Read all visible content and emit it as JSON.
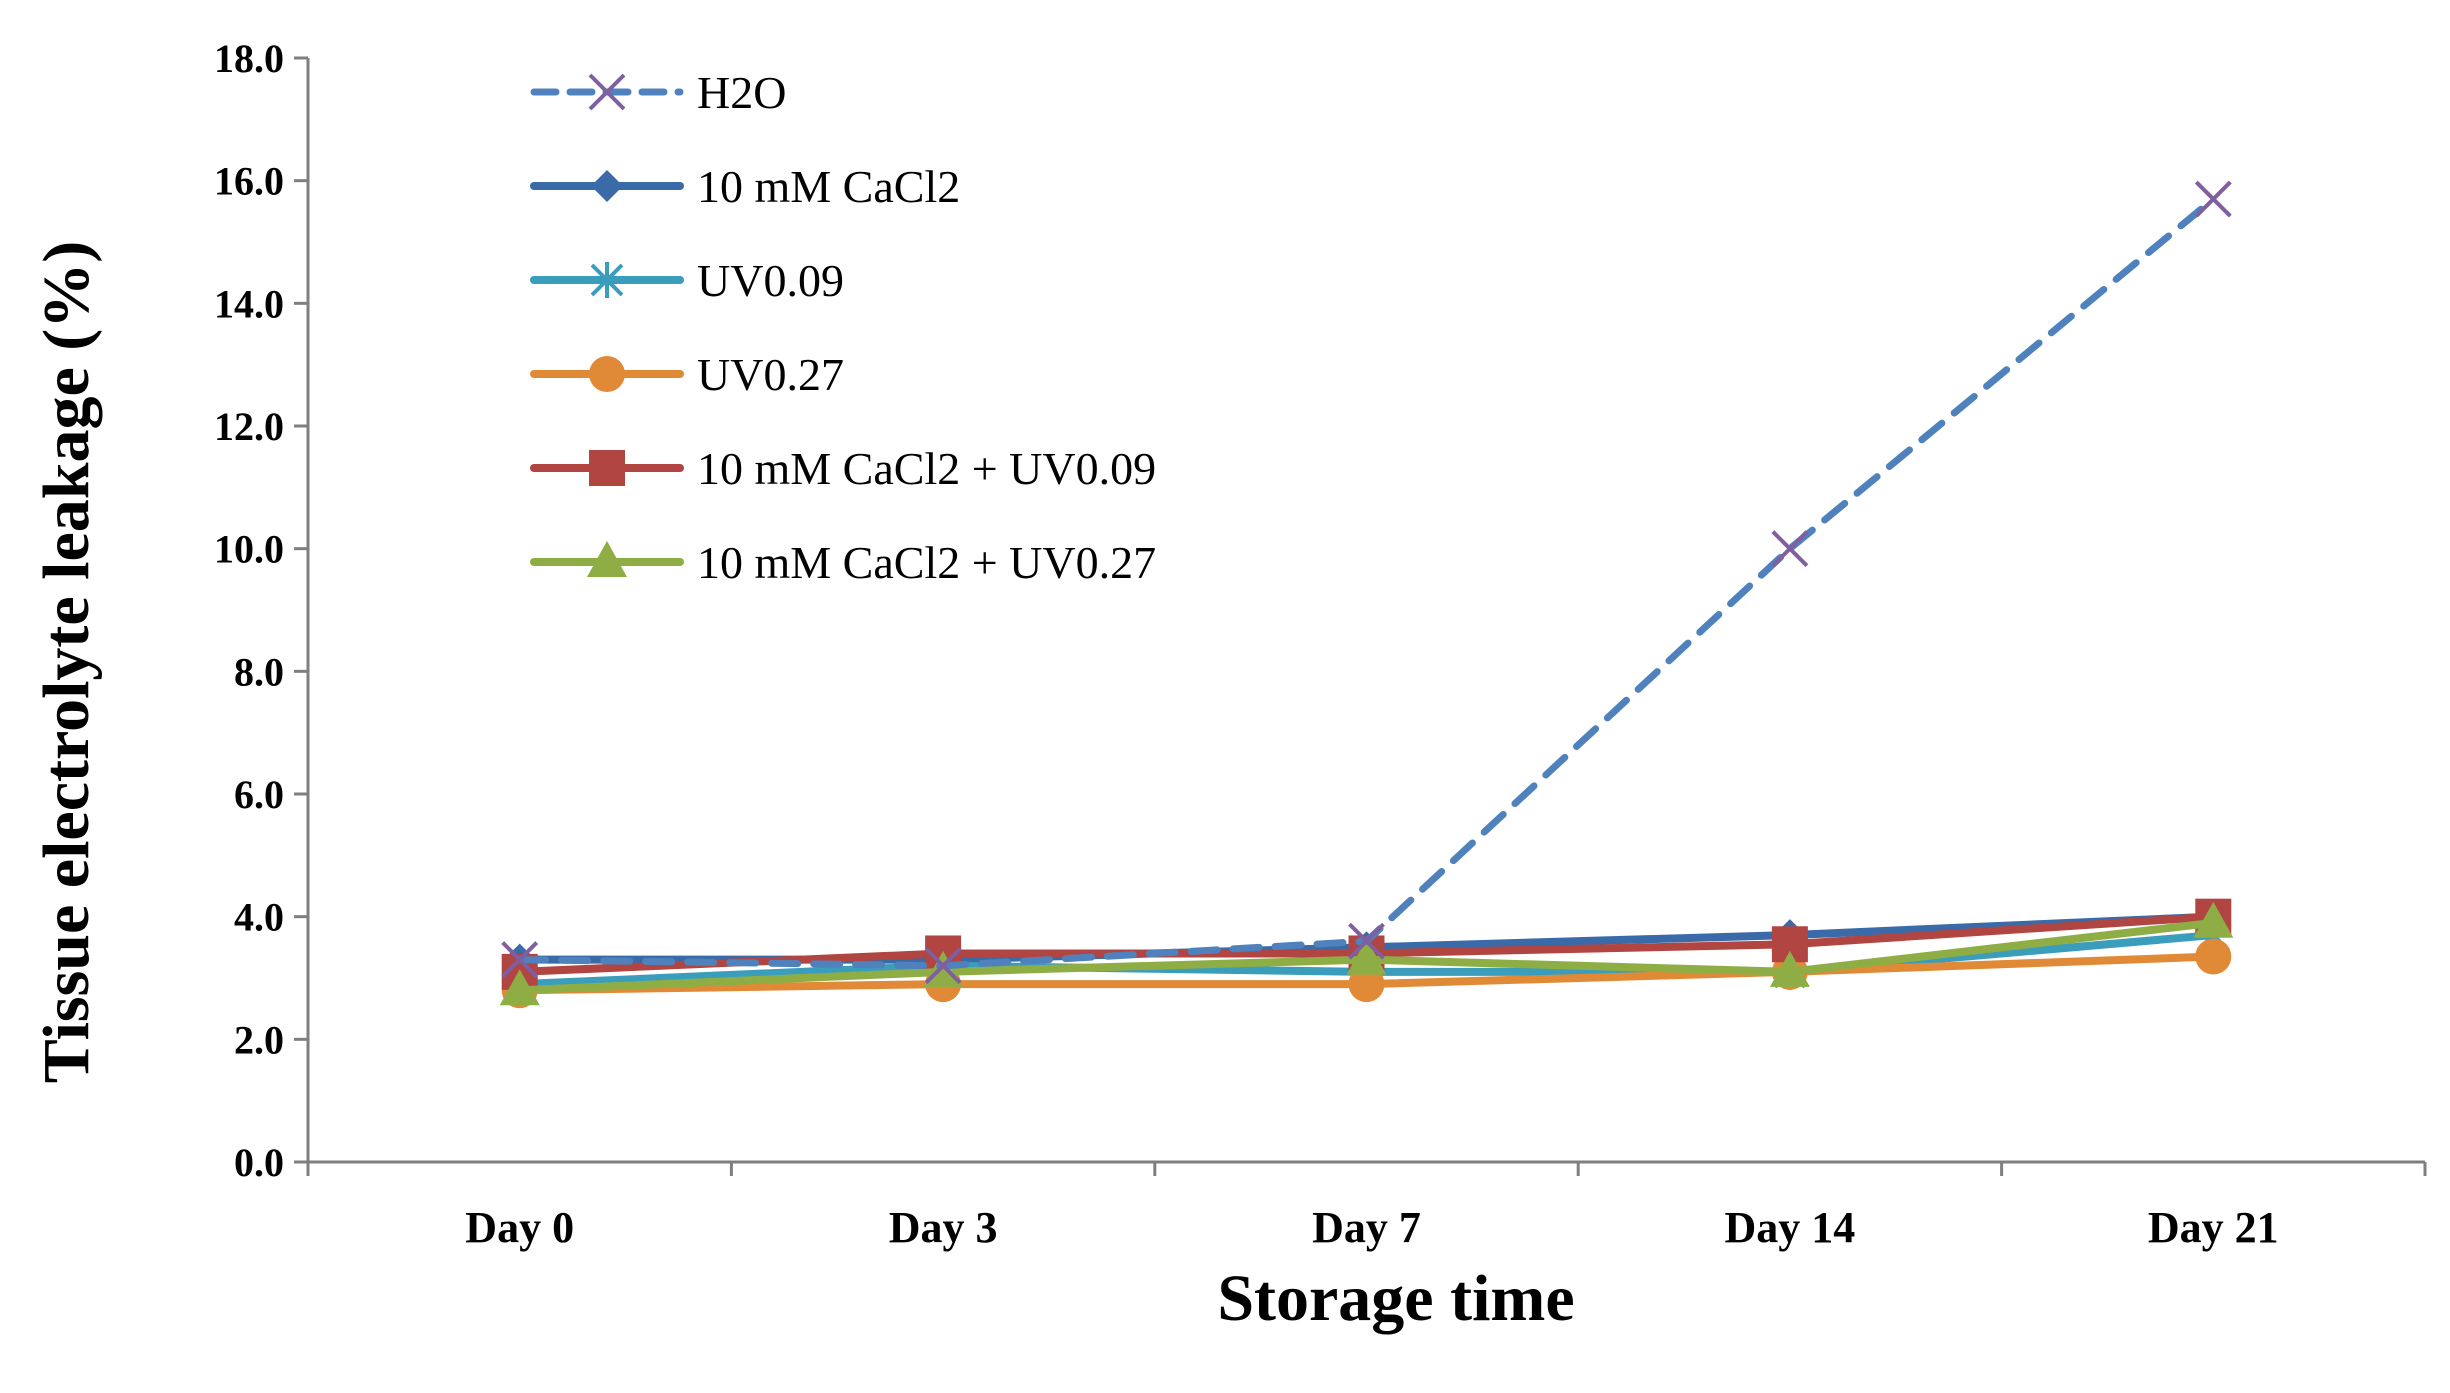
{
  "chart_data": {
    "type": "line",
    "title": "",
    "xlabel": "Storage time",
    "ylabel": "Tissue electrolyte leakage (%)",
    "ylim": [
      0,
      18
    ],
    "yticks": [
      "0.0",
      "2.0",
      "4.0",
      "6.0",
      "8.0",
      "10.0",
      "12.0",
      "14.0",
      "16.0",
      "18.0"
    ],
    "categories": [
      "Day 0",
      "Day 3",
      "Day 7",
      "Day 14",
      "Day 21"
    ],
    "grid": false,
    "legend_position": "top-left",
    "series": [
      {
        "name": "H2O",
        "values": [
          3.3,
          3.2,
          3.6,
          10.0,
          15.7
        ],
        "color": "#4f81bd",
        "marker_color": "#7f5fa0",
        "marker": "x",
        "dash": true
      },
      {
        "name": "10 mM CaCl2",
        "values": [
          3.3,
          3.3,
          3.5,
          3.7,
          4.0
        ],
        "color": "#3a6aa8",
        "marker": "diamond",
        "dash": false
      },
      {
        "name": "UV0.09",
        "values": [
          2.9,
          3.2,
          3.1,
          3.1,
          3.7
        ],
        "color": "#3a9dbb",
        "marker": "asterisk",
        "dash": false
      },
      {
        "name": "UV0.27",
        "values": [
          2.8,
          2.9,
          2.9,
          3.1,
          3.35
        ],
        "color": "#e08a38",
        "marker": "circle",
        "dash": false
      },
      {
        "name": "10 mM CaCl2 + UV0.09",
        "values": [
          3.1,
          3.4,
          3.4,
          3.55,
          4.0
        ],
        "color": "#b04541",
        "marker": "square",
        "dash": false
      },
      {
        "name": "10 mM CaCl2 + UV0.27",
        "values": [
          2.8,
          3.1,
          3.3,
          3.1,
          3.9
        ],
        "color": "#8eae45",
        "marker": "triangle",
        "dash": false
      }
    ]
  }
}
